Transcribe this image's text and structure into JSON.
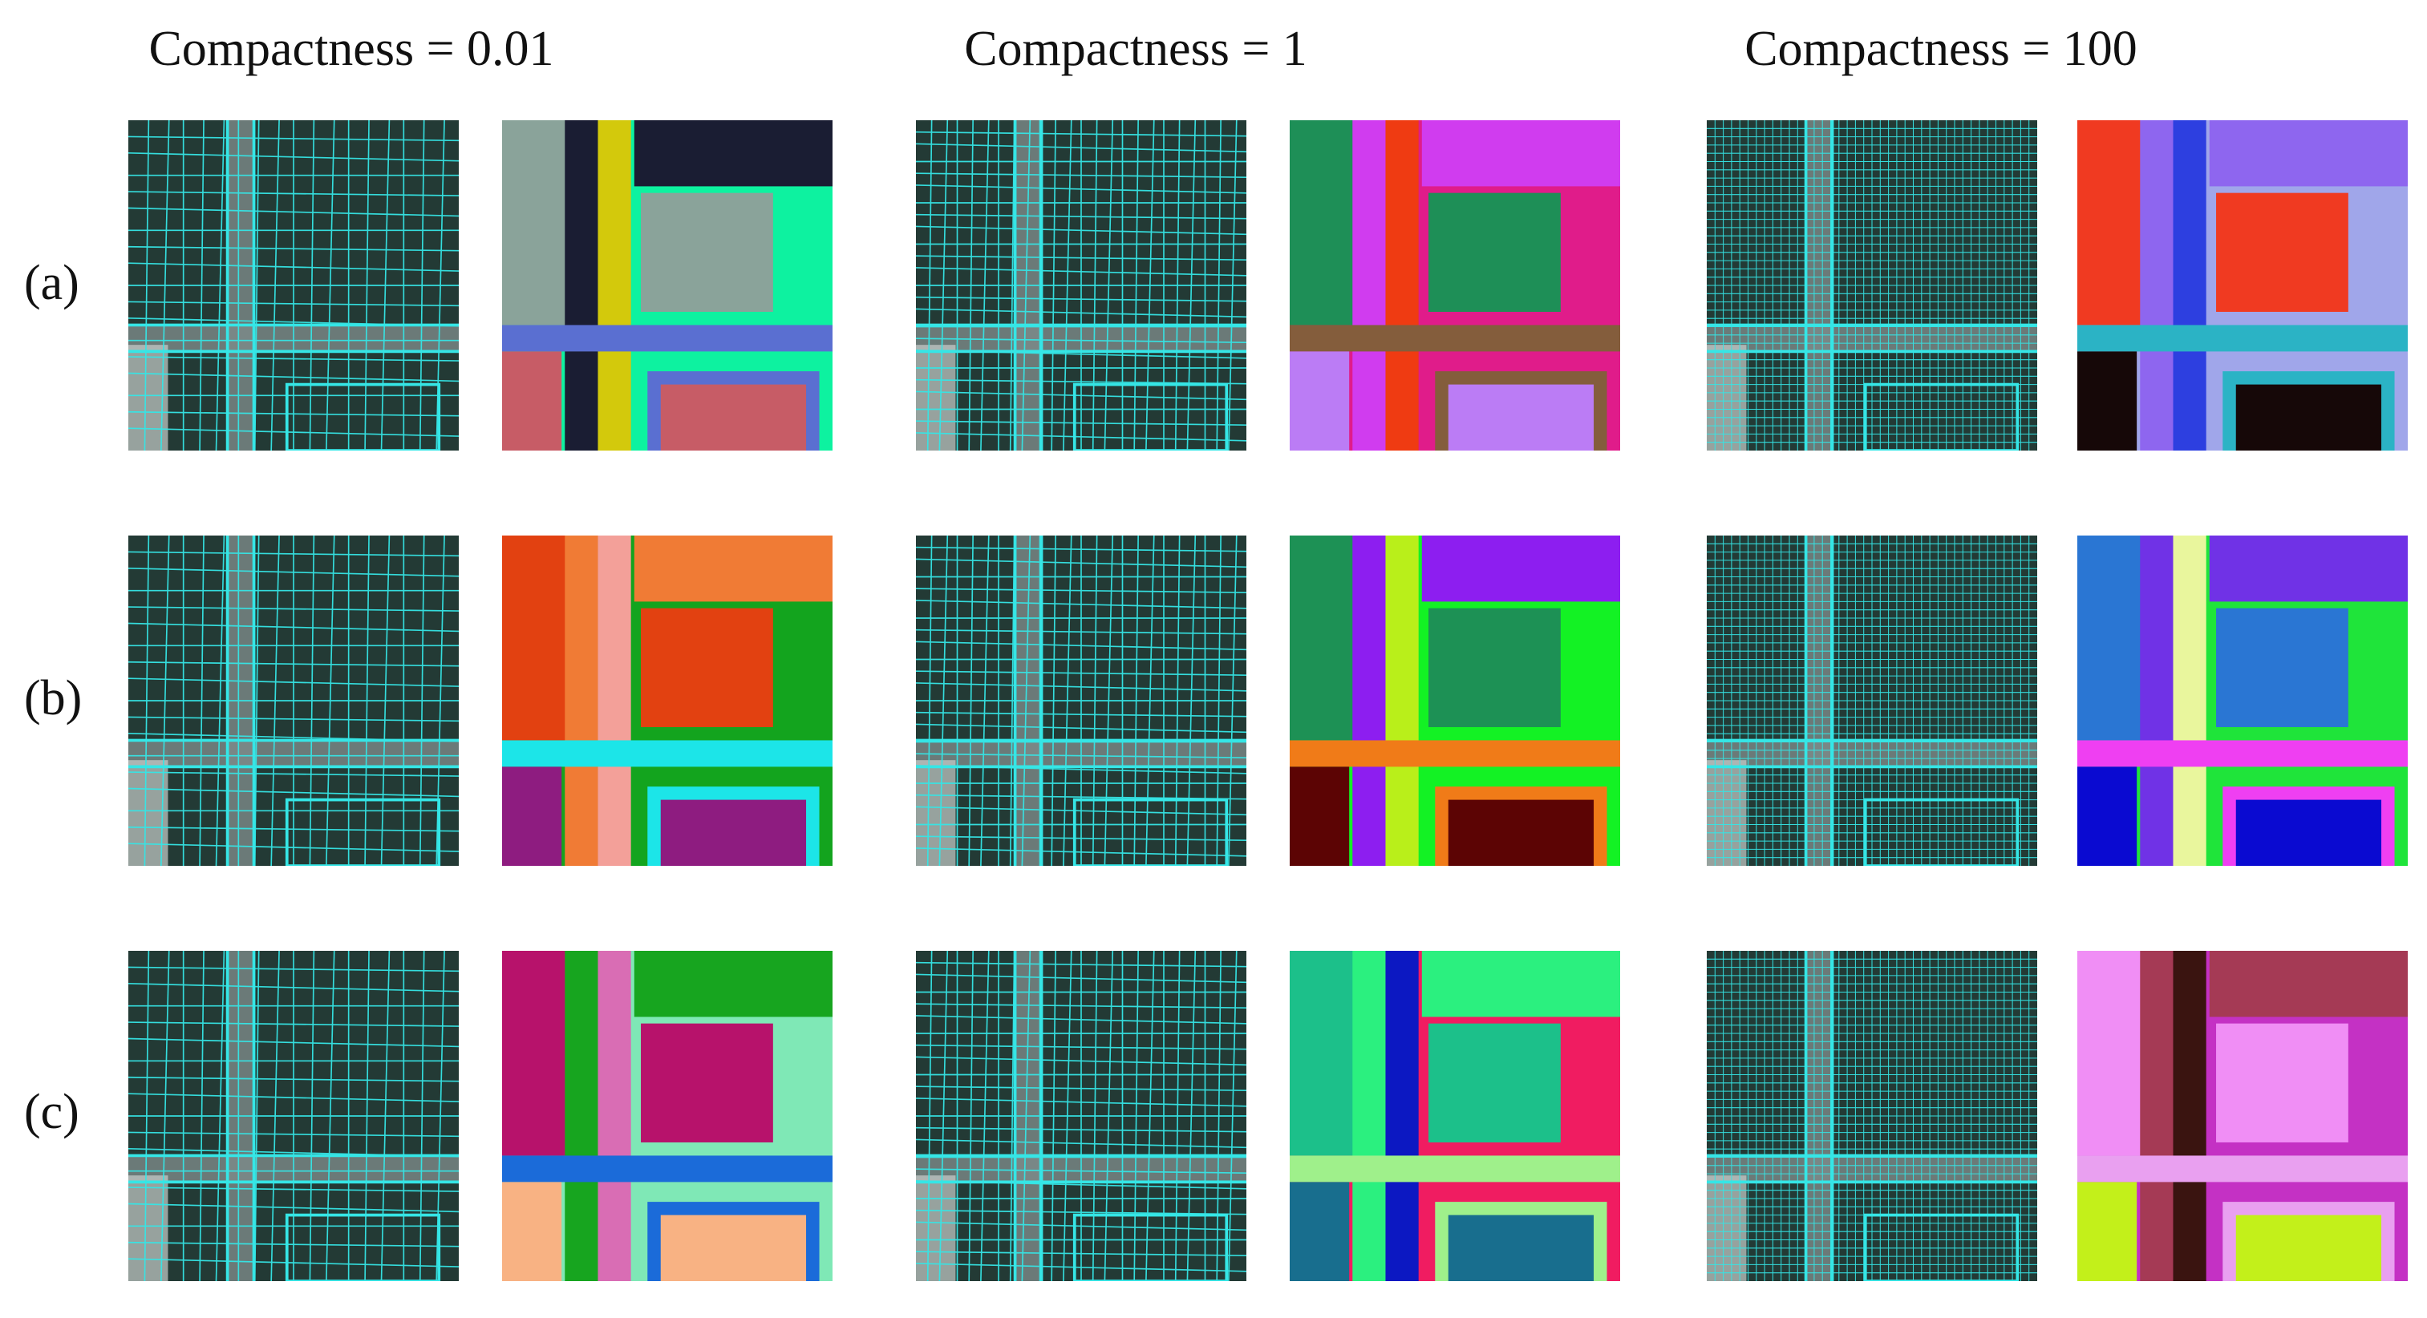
{
  "columns": [
    {
      "title": "Compactness = 0.01"
    },
    {
      "title": "Compactness = 1"
    },
    {
      "title": "Compactness = 100"
    }
  ],
  "rows": [
    {
      "label": "(a)"
    },
    {
      "label": "(b)"
    },
    {
      "label": "(c)"
    }
  ],
  "colors": {
    "overlay_line": "#35e6e6",
    "aerial_dark": "#233a35",
    "aerial_road": "#7d8b8a"
  },
  "panels": [
    {
      "label": "(a)",
      "compactness": "0.01",
      "palette": [
        "#0df2a0",
        "#1a1d33",
        "#d3c90c",
        "#8aa39a",
        "#c75c66",
        "#5a6fd1"
      ]
    },
    {
      "label": "(a)",
      "compactness": "1",
      "palette": [
        "#e01c8a",
        "#d03cef",
        "#ef3b12",
        "#1e8f57",
        "#bb7cf5",
        "#845d3c"
      ]
    },
    {
      "label": "(a)",
      "compactness": "100",
      "palette": [
        "#a0a6ea",
        "#8e66ef",
        "#2d3fe0",
        "#f03a21",
        "#160808",
        "#2bb3c5"
      ]
    },
    {
      "label": "(b)",
      "compactness": "0.01",
      "palette": [
        "#13a41e",
        "#f07b35",
        "#f3a099",
        "#e24111",
        "#8e1c80",
        "#1ce5e8"
      ]
    },
    {
      "label": "(b)",
      "compactness": "1",
      "palette": [
        "#13f224",
        "#8d1ef0",
        "#b9ef1a",
        "#1d9155",
        "#5c0404",
        "#f07b18"
      ]
    },
    {
      "label": "(b)",
      "compactness": "100",
      "palette": [
        "#1fe43a",
        "#7032e6",
        "#e9f69d",
        "#2a76d3",
        "#0a0ad1",
        "#ef3ff2"
      ]
    },
    {
      "label": "(c)",
      "compactness": "0.01",
      "palette": [
        "#7fe8b6",
        "#17a51f",
        "#d96db4",
        "#b7126b",
        "#f8b283",
        "#1b6bd9"
      ]
    },
    {
      "label": "(c)",
      "compactness": "1",
      "palette": [
        "#f01c61",
        "#2bf07f",
        "#0c18c2",
        "#1cc08a",
        "#186e8e",
        "#9ff08b"
      ]
    },
    {
      "label": "(c)",
      "compactness": "100",
      "palette": [
        "#c431c4",
        "#a53a55",
        "#3a1410",
        "#f08ef5",
        "#c3f01a",
        "#e9a0f0"
      ]
    }
  ]
}
